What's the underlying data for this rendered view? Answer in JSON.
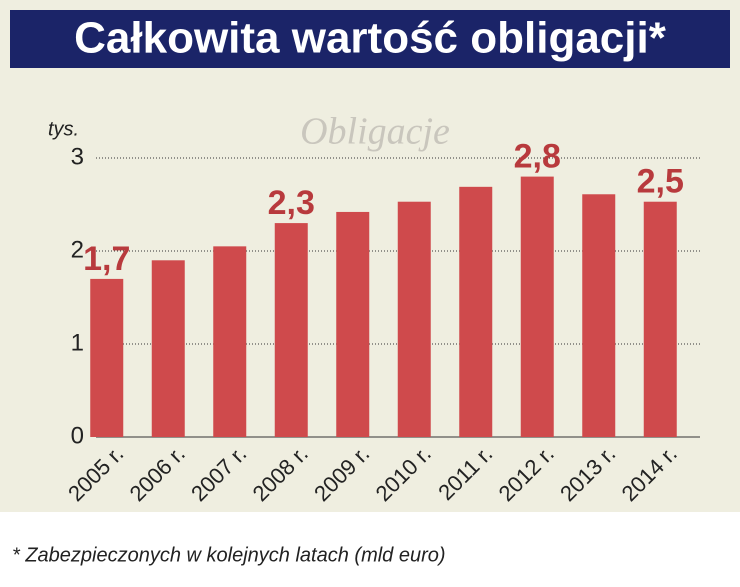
{
  "chart_data": {
    "type": "bar",
    "title": "Całkowita wartość obligacji*",
    "watermark": "Obligacje",
    "unit_label": "tys.",
    "footnote": "* Zabezpieczonych w kolejnych latach (mld euro)",
    "categories": [
      "2005 r.",
      "2006 r.",
      "2007 r.",
      "2008 r.",
      "2009 r.",
      "2010 r.",
      "2011 r.",
      "2012 r.",
      "2013 r.",
      "2014 r."
    ],
    "values": [
      1.7,
      1.9,
      2.05,
      2.3,
      2.42,
      2.53,
      2.69,
      2.8,
      2.61,
      2.53
    ],
    "value_labels": [
      "1,7",
      null,
      null,
      "2,3",
      null,
      null,
      null,
      "2,8",
      null,
      "2,5"
    ],
    "color": "#cf4a4c",
    "ylim": [
      0,
      3
    ],
    "yticks": [
      0,
      1,
      2,
      3
    ],
    "grid": true
  }
}
